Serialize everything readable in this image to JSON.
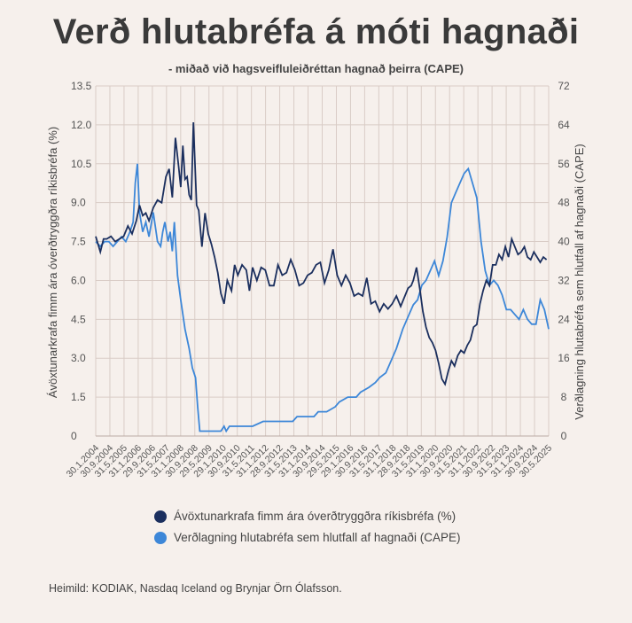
{
  "title": "Verð hlutabréfa á móti hagnaði",
  "subtitle": "- miðað við hagsveifluleiðréttan hagnað þeirra (CAPE)",
  "source": "Heimild: KODIAK, Nasdaq Iceland og Brynjar Örn Ólafsson.",
  "colors": {
    "series1": "#1b2f5e",
    "series2": "#3d87d8",
    "grid": "#d9ccc6"
  },
  "chart_data": {
    "type": "line",
    "ylabel_left": "Ávöxtunarkrafa fimm ára óverðtryggðra ríkisbréfa (%)",
    "ylabel_right": "Verðlagning hlutabréfa sem hlutfall af hagnaði (CAPE)",
    "ylim_left": [
      0,
      13.5
    ],
    "ylim_right": [
      0,
      72
    ],
    "yticks_left": [
      "0",
      "1.5",
      "3.0",
      "4.5",
      "6.0",
      "7.5",
      "9.0",
      "10.5",
      "12.0",
      "13.5"
    ],
    "yticks_right": [
      "0",
      "8",
      "16",
      "24",
      "32",
      "40",
      "48",
      "56",
      "64",
      "72"
    ],
    "x_tick_labels": [
      "30.1.2004",
      "30.9.2004",
      "31.5.2005",
      "31.1.2006",
      "29.9.2006",
      "31.5.2007",
      "31.1.2008",
      "30.9.2008",
      "29.5.2009",
      "29.1.2010",
      "30.9.2010",
      "31.5.2011",
      "31.1.2012",
      "28.9.2012",
      "31.5.2013",
      "31.1.2014",
      "30.9.2014",
      "29.5.2015",
      "29.1.2016",
      "30.9.2016",
      "31.5.2017",
      "31.1.2018",
      "28.9.2018",
      "31.5.2019",
      "31.1.2020",
      "30.9.2020",
      "31.5.2021",
      "31.1.2022",
      "30.9.2022",
      "31.5.2023",
      "31.1.2024",
      "30.9.2024",
      "30.5.2025"
    ],
    "grid": true,
    "legend_position": "bottom",
    "series": [
      {
        "name": "Ávöxtunarkrafa fimm ára óverðtryggðra ríkisbréfa (%)",
        "axis": "left",
        "x": [
          2004.08,
          2004.3,
          2004.45,
          2004.6,
          2004.8,
          2005.0,
          2005.2,
          2005.4,
          2005.6,
          2005.8,
          2006.0,
          2006.15,
          2006.3,
          2006.45,
          2006.6,
          2006.8,
          2007.0,
          2007.2,
          2007.4,
          2007.55,
          2007.7,
          2007.85,
          2008.0,
          2008.1,
          2008.2,
          2008.3,
          2008.4,
          2008.5,
          2008.6,
          2008.7,
          2008.75,
          2008.85,
          2008.95,
          2009.1,
          2009.25,
          2009.4,
          2009.55,
          2009.7,
          2009.85,
          2010.0,
          2010.15,
          2010.3,
          2010.5,
          2010.65,
          2010.8,
          2011.0,
          2011.2,
          2011.35,
          2011.5,
          2011.7,
          2011.9,
          2012.1,
          2012.3,
          2012.5,
          2012.7,
          2012.9,
          2013.1,
          2013.3,
          2013.5,
          2013.7,
          2013.9,
          2014.1,
          2014.3,
          2014.5,
          2014.7,
          2014.9,
          2015.1,
          2015.3,
          2015.5,
          2015.7,
          2015.9,
          2016.1,
          2016.3,
          2016.5,
          2016.7,
          2016.9,
          2017.1,
          2017.3,
          2017.5,
          2017.7,
          2017.9,
          2018.1,
          2018.3,
          2018.5,
          2018.7,
          2018.85,
          2019.0,
          2019.1,
          2019.25,
          2019.4,
          2019.55,
          2019.7,
          2019.85,
          2020.0,
          2020.15,
          2020.3,
          2020.45,
          2020.6,
          2020.75,
          2020.9,
          2021.05,
          2021.2,
          2021.35,
          2021.5,
          2021.65,
          2021.8,
          2021.95,
          2022.1,
          2022.25,
          2022.4,
          2022.55,
          2022.7,
          2022.85,
          2023.0,
          2023.15,
          2023.3,
          2023.45,
          2023.6,
          2023.75,
          2023.9,
          2024.05,
          2024.2,
          2024.35,
          2024.5,
          2024.65,
          2024.8,
          2024.95,
          2025.1,
          2025.25,
          2025.4
        ],
        "values": [
          7.7,
          7.1,
          7.6,
          7.6,
          7.7,
          7.5,
          7.6,
          7.7,
          8.1,
          7.8,
          8.3,
          8.9,
          8.5,
          8.6,
          8.3,
          8.8,
          9.1,
          9.0,
          10.0,
          10.3,
          9.2,
          11.5,
          10.4,
          9.6,
          11.2,
          9.9,
          10.0,
          9.3,
          9.1,
          12.1,
          11.0,
          8.9,
          8.7,
          7.3,
          8.6,
          7.8,
          7.4,
          6.9,
          6.3,
          5.5,
          5.1,
          6.0,
          5.6,
          6.6,
          6.2,
          6.6,
          6.4,
          5.6,
          6.5,
          6.0,
          6.5,
          6.4,
          5.8,
          5.8,
          6.6,
          6.2,
          6.3,
          6.8,
          6.4,
          5.8,
          5.9,
          6.2,
          6.3,
          6.6,
          6.7,
          5.9,
          6.4,
          7.2,
          6.2,
          5.8,
          6.2,
          5.9,
          5.4,
          5.5,
          5.4,
          6.1,
          5.1,
          5.2,
          4.8,
          5.1,
          4.9,
          5.1,
          5.4,
          5.0,
          5.4,
          5.7,
          5.8,
          6.0,
          6.5,
          5.7,
          4.8,
          4.2,
          3.8,
          3.6,
          3.3,
          2.8,
          2.2,
          2.0,
          2.5,
          2.9,
          2.7,
          3.1,
          3.3,
          3.2,
          3.5,
          3.7,
          4.2,
          4.3,
          5.1,
          5.6,
          6.0,
          5.8,
          6.6,
          6.6,
          7.0,
          6.8,
          7.3,
          6.9,
          7.6,
          7.3,
          7.0,
          7.1,
          7.3,
          6.9,
          6.8,
          7.1,
          6.9,
          6.7,
          6.9,
          6.8
        ]
      },
      {
        "name": "Verðlagning hlutabréfa sem hlutfall af hagnaði (CAPE)",
        "axis": "right",
        "x": [
          2004.08,
          2004.3,
          2004.5,
          2004.7,
          2004.9,
          2005.1,
          2005.3,
          2005.5,
          2005.7,
          2005.85,
          2005.95,
          2006.05,
          2006.15,
          2006.3,
          2006.45,
          2006.6,
          2006.8,
          2007.0,
          2007.15,
          2007.25,
          2007.35,
          2007.5,
          2007.6,
          2007.7,
          2007.8,
          2007.95,
          2008.1,
          2008.3,
          2008.5,
          2008.65,
          2008.8,
          2008.9,
          2009.0,
          2009.2,
          2009.6,
          2010.0,
          2010.15,
          2010.25,
          2010.4,
          2011.0,
          2011.5,
          2012.0,
          2012.5,
          2013.0,
          2013.4,
          2013.6,
          2014.0,
          2014.4,
          2014.6,
          2015.0,
          2015.4,
          2015.6,
          2016.0,
          2016.4,
          2016.6,
          2017.0,
          2017.3,
          2017.5,
          2017.8,
          2018.0,
          2018.3,
          2018.6,
          2018.9,
          2019.1,
          2019.3,
          2019.5,
          2019.7,
          2019.9,
          2020.1,
          2020.3,
          2020.5,
          2020.7,
          2020.9,
          2021.1,
          2021.3,
          2021.5,
          2021.7,
          2021.9,
          2022.1,
          2022.3,
          2022.5,
          2022.7,
          2022.9,
          2023.1,
          2023.3,
          2023.5,
          2023.7,
          2023.9,
          2024.1,
          2024.3,
          2024.5,
          2024.7,
          2024.9,
          2025.1,
          2025.3,
          2025.5
        ],
        "values": [
          40,
          39,
          40,
          40,
          39,
          40,
          41,
          40,
          42,
          44,
          52,
          56,
          46,
          42,
          44,
          41,
          46,
          40,
          39,
          42,
          44,
          40,
          42,
          38,
          44,
          33,
          28,
          22,
          18,
          14,
          12,
          6,
          1,
          1,
          1,
          1,
          2,
          1,
          2,
          2,
          2,
          3,
          3,
          3,
          3,
          4,
          4,
          4,
          5,
          5,
          6,
          7,
          8,
          8,
          9,
          10,
          11,
          12,
          13,
          15,
          18,
          22,
          25,
          27,
          28,
          31,
          32,
          34,
          36,
          33,
          36,
          41,
          48,
          50,
          52,
          54,
          55,
          52,
          49,
          40,
          34,
          31,
          32,
          31,
          29,
          26,
          26,
          25,
          24,
          26,
          24,
          23,
          23,
          28,
          26,
          22
        ]
      }
    ]
  }
}
